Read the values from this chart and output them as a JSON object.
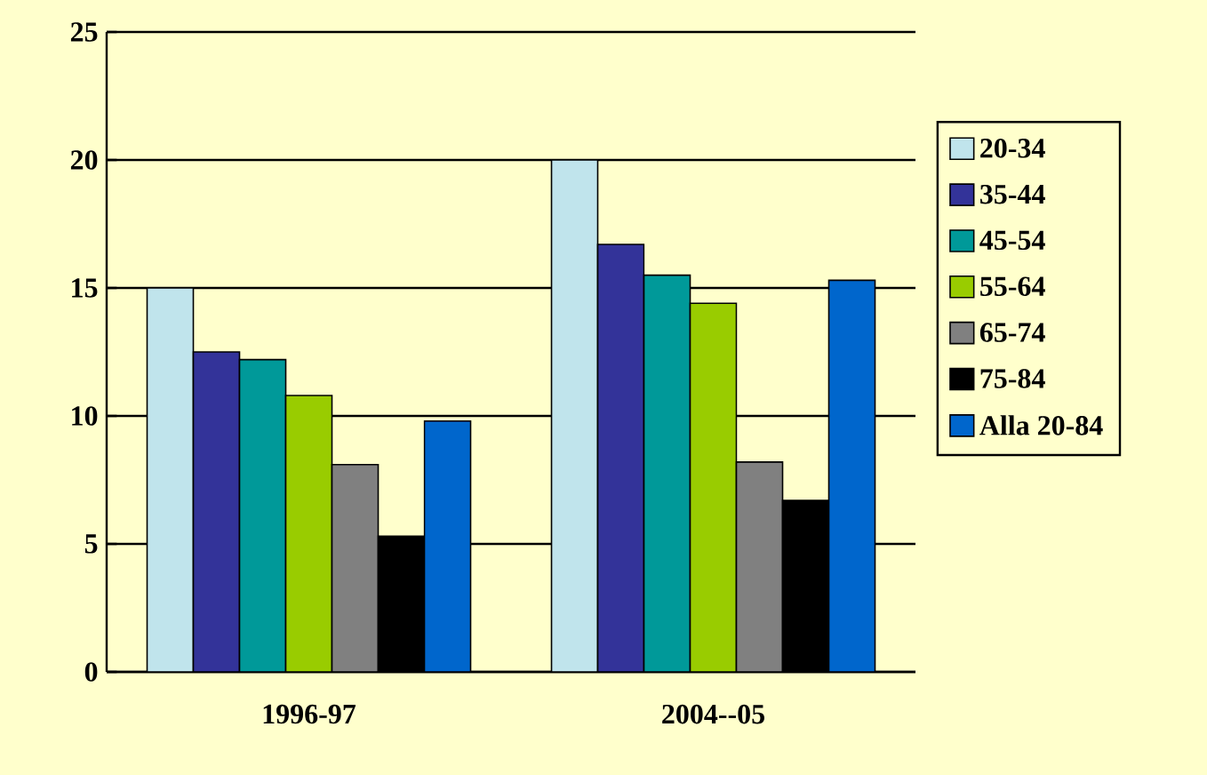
{
  "chart_data": {
    "type": "bar",
    "categories": [
      "1996-97",
      "2004--05"
    ],
    "series": [
      {
        "name": "20-34",
        "color": "#c0e4ec",
        "values": [
          15,
          20
        ]
      },
      {
        "name": "35-44",
        "color": "#333399",
        "values": [
          12.5,
          16.7
        ]
      },
      {
        "name": "45-54",
        "color": "#009999",
        "values": [
          12.2,
          15.5
        ]
      },
      {
        "name": "55-64",
        "color": "#99cc00",
        "values": [
          10.8,
          14.4
        ]
      },
      {
        "name": "65-74",
        "color": "#808080",
        "values": [
          8.1,
          8.2
        ]
      },
      {
        "name": "75-84",
        "color": "#000000",
        "values": [
          5.3,
          6.7
        ]
      },
      {
        "name": "Alla 20-84",
        "color": "#0066cc",
        "values": [
          9.8,
          15.3
        ]
      }
    ],
    "ylim": [
      0,
      25
    ],
    "yticks": [
      0,
      5,
      10,
      15,
      20,
      25
    ],
    "grid": "y",
    "legend": "right"
  }
}
